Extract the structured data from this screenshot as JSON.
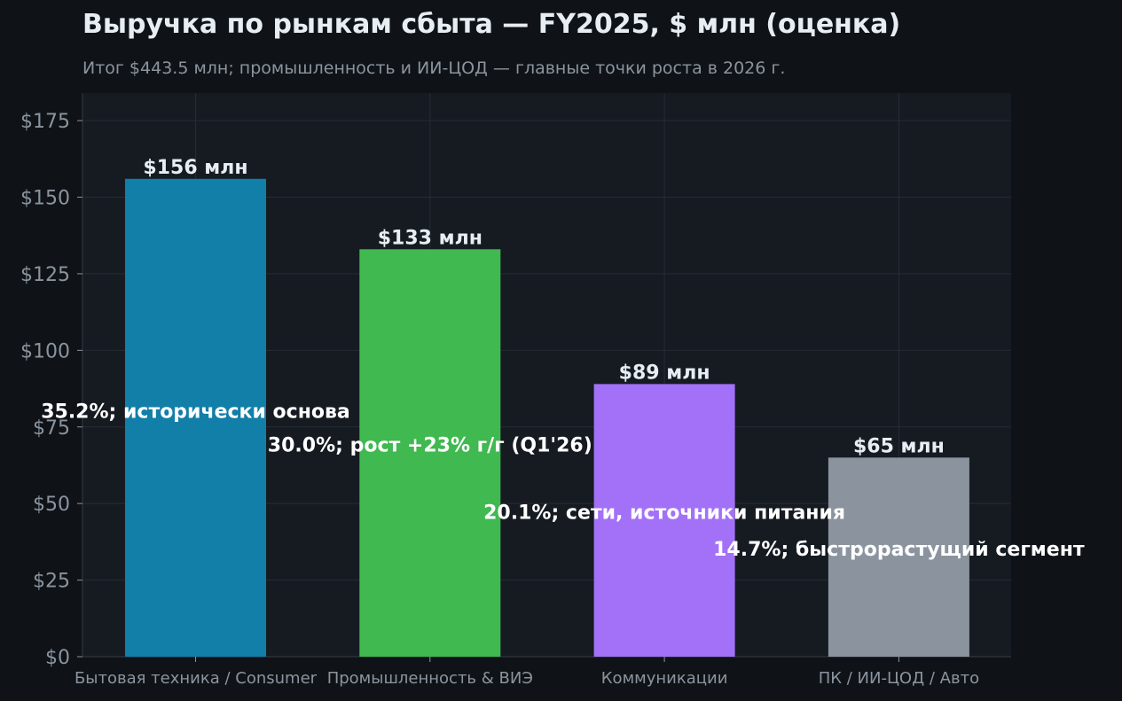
{
  "chart_data": {
    "type": "bar",
    "title": "Выручка по рынкам сбыта — FY2025, $ млн (оценка)",
    "subtitle": "Итог $443.5 млн; промышленность и ИИ-ЦОД — главные точки роста в 2026 г.",
    "xlabel": "",
    "ylabel": "",
    "ylim": [
      0,
      184
    ],
    "y_ticks": [
      0,
      25,
      50,
      75,
      100,
      125,
      150,
      175
    ],
    "y_tick_labels": [
      "$0",
      "$25",
      "$50",
      "$75",
      "$100",
      "$125",
      "$150",
      "$175"
    ],
    "grid": true,
    "legend": "none",
    "categories": [
      "Бытовая техника / Consumer",
      "Промышленность & ВИЭ",
      "Коммуникации",
      "ПК / ИИ-ЦОД / Авто"
    ],
    "values": [
      156,
      133,
      89,
      65
    ],
    "value_labels": [
      "$156 млн",
      "$133 млн",
      "$89 млн",
      "$65 млн"
    ],
    "annotations": [
      "35.2%; исторически основа",
      "30.0%; рост +23% г/г (Q1'26)",
      "20.1%; сети, источники питания",
      "14.7%; быстрорастущий сегмент"
    ],
    "annotation_levels": [
      78,
      67,
      45,
      33
    ],
    "colors": [
      "#117fa8",
      "#3fb950",
      "#a371f7",
      "#8b949e"
    ]
  }
}
